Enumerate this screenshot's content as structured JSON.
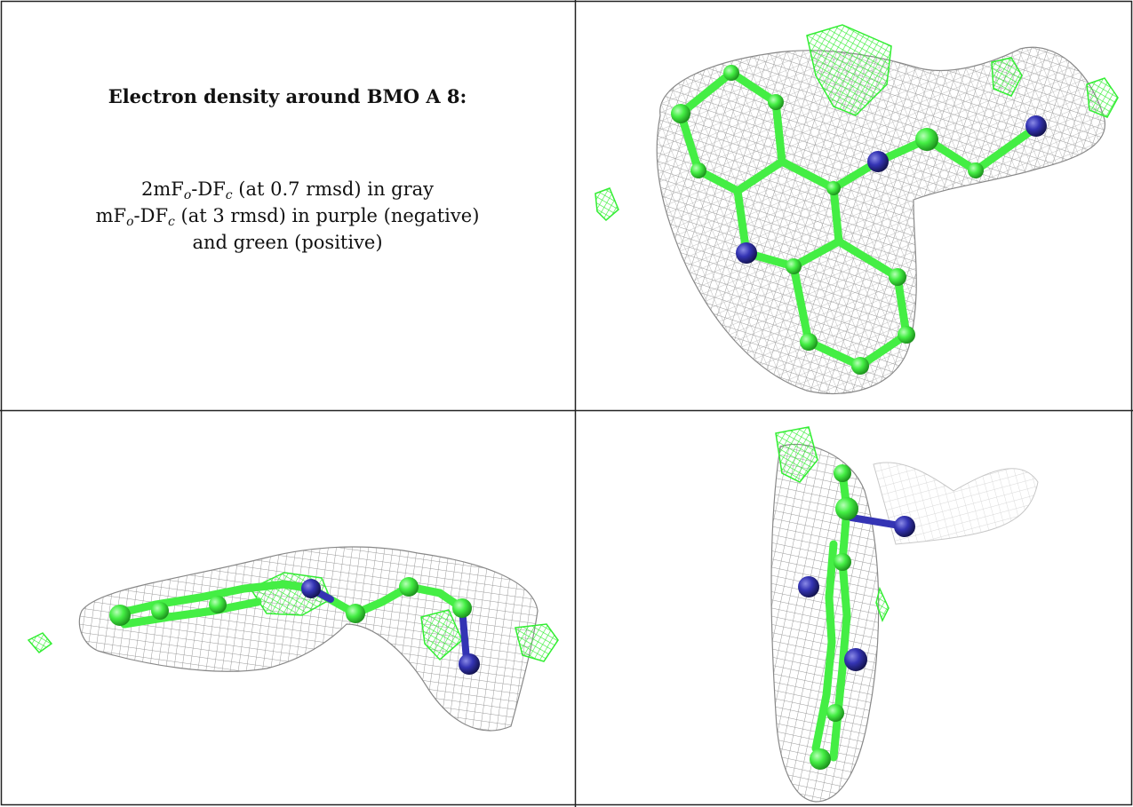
{
  "title": "Electron density around BMO A 8:",
  "caption": {
    "line1": {
      "a": "2mF",
      "s1": "o",
      "b": "-DF",
      "s2": "c",
      "rest": " (at 0.7 rmsd) in gray"
    },
    "line2": {
      "a": "mF",
      "s1": "o",
      "b": "-DF",
      "s2": "c",
      "rest": " (at 3 rmsd) in purple (negative)"
    },
    "line3": "and green (positive)"
  },
  "colors": {
    "mesh_2fofc": "#9a9a9a",
    "diff_positive": "#33ee33",
    "carbon": "#44ee44",
    "nitrogen": "#3434b4",
    "border": "#222222"
  },
  "panels": [
    {
      "view": "front"
    },
    {
      "view": "side"
    },
    {
      "view": "edge"
    }
  ]
}
